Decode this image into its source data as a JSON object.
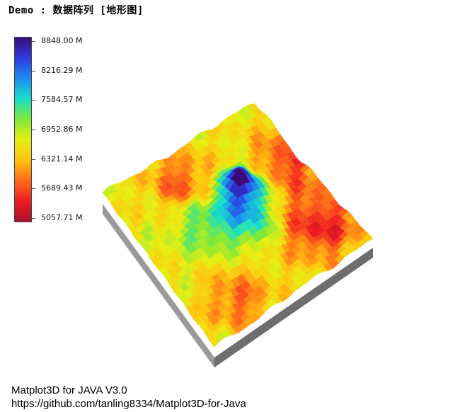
{
  "header": {
    "title": "Demo : 数据阵列 [地形图]"
  },
  "chart_data": {
    "type": "surface",
    "subtype": "terrain-3d",
    "colormap": "jet-like (dark red → red → orange → yellow → green → cyan → blue → indigo)",
    "colorbar": {
      "min": 5057.71,
      "max": 8848.0,
      "ticks": [
        "8848.00 M",
        "8216.29 M",
        "7584.57 M",
        "6952.86 M",
        "6321.14 M",
        "5689.43 M",
        "5057.71 M"
      ],
      "stops": [
        "#3d0a78",
        "#2f3ce0",
        "#1d8cf0",
        "#18e0c8",
        "#7ee83a",
        "#e6ef14",
        "#ffc410",
        "#ff6a1a",
        "#ee1c24",
        "#a8102a"
      ]
    },
    "grid": "off"
  },
  "footer": {
    "line1": "Matplot3D for JAVA V3.0",
    "line2": "https://github.com/tanling8334/Matplot3D-for-Java"
  }
}
